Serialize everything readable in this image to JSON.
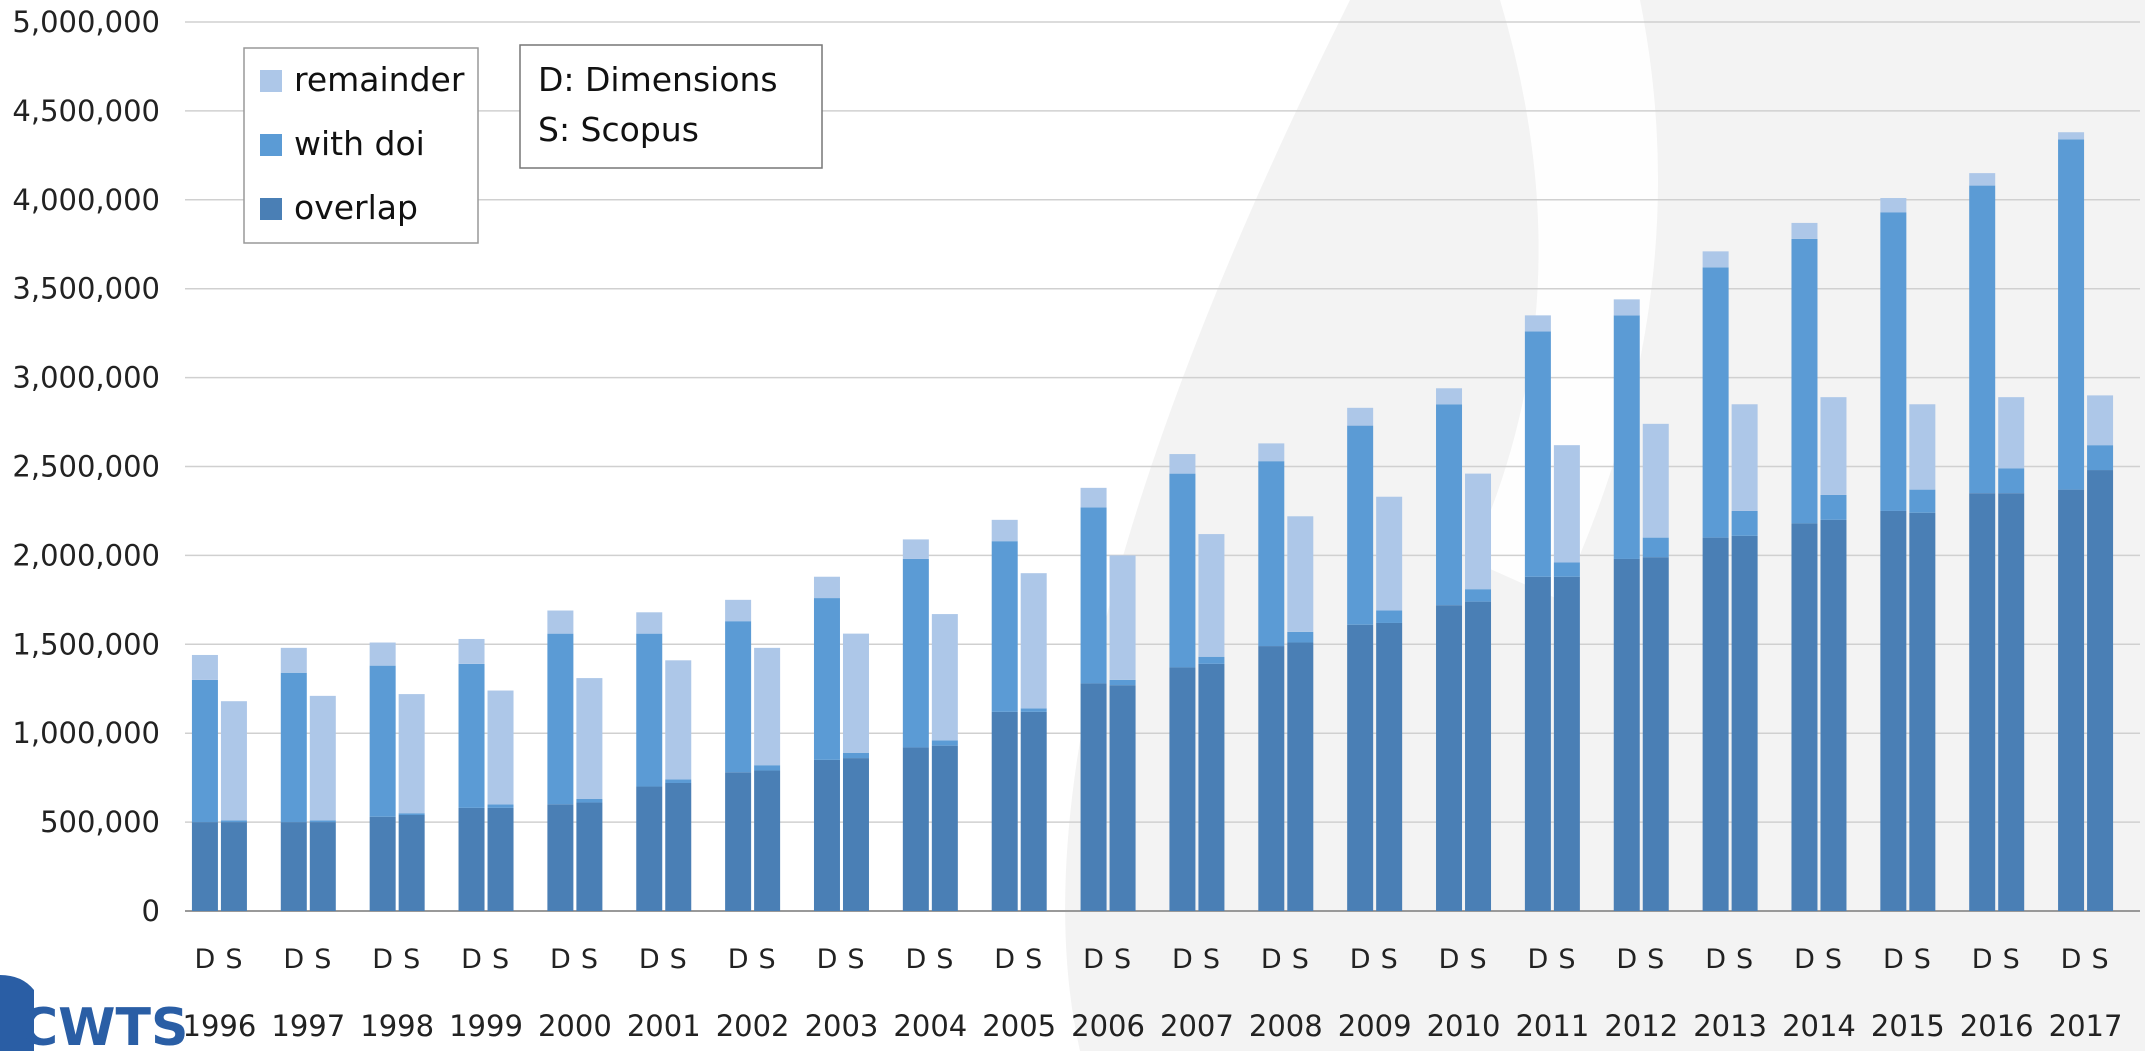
{
  "chart_data": {
    "type": "bar",
    "stacked": true,
    "grouped_by": [
      "D",
      "S"
    ],
    "categories": [
      "1996",
      "1997",
      "1998",
      "1999",
      "2000",
      "2001",
      "2002",
      "2003",
      "2004",
      "2005",
      "2006",
      "2007",
      "2008",
      "2009",
      "2010",
      "2011",
      "2012",
      "2013",
      "2014",
      "2015",
      "2016",
      "2017"
    ],
    "group_labels": [
      "D",
      "S"
    ],
    "ylim": [
      0,
      5000000
    ],
    "yticks": [
      0,
      500000,
      1000000,
      1500000,
      2000000,
      2500000,
      3000000,
      3500000,
      4000000,
      4500000,
      5000000
    ],
    "ytick_labels": [
      "0",
      "500,000",
      "1,000,000",
      "1,500,000",
      "2,000,000",
      "2,500,000",
      "3,000,000",
      "3,500,000",
      "4,000,000",
      "4,500,000",
      "5,000,000"
    ],
    "grid": true,
    "legend_position": "top-left",
    "series": [
      {
        "name": "overlap",
        "color": "#4a7fb5",
        "D": [
          500000,
          500000,
          530000,
          580000,
          600000,
          700000,
          780000,
          850000,
          920000,
          1120000,
          1280000,
          1370000,
          1490000,
          1610000,
          1720000,
          1880000,
          1980000,
          2100000,
          2180000,
          2250000,
          2350000,
          2370000
        ],
        "S": [
          500000,
          500000,
          540000,
          580000,
          610000,
          720000,
          790000,
          860000,
          930000,
          1120000,
          1270000,
          1390000,
          1510000,
          1620000,
          1740000,
          1880000,
          1990000,
          2110000,
          2200000,
          2240000,
          2350000,
          2480000
        ]
      },
      {
        "name": "with doi",
        "color": "#5b9bd5",
        "D": [
          800000,
          840000,
          850000,
          810000,
          960000,
          860000,
          850000,
          910000,
          1060000,
          960000,
          990000,
          1090000,
          1040000,
          1120000,
          1130000,
          1380000,
          1370000,
          1520000,
          1600000,
          1680000,
          1730000,
          1970000
        ],
        "S": [
          10000,
          10000,
          10000,
          20000,
          20000,
          20000,
          30000,
          30000,
          30000,
          20000,
          30000,
          40000,
          60000,
          70000,
          70000,
          80000,
          110000,
          140000,
          140000,
          130000,
          140000,
          140000
        ]
      },
      {
        "name": "remainder",
        "color": "#adc7e8",
        "D": [
          140000,
          140000,
          130000,
          140000,
          130000,
          120000,
          120000,
          120000,
          110000,
          120000,
          110000,
          110000,
          100000,
          100000,
          90000,
          90000,
          90000,
          90000,
          90000,
          80000,
          70000,
          40000
        ],
        "S": [
          670000,
          700000,
          670000,
          640000,
          680000,
          670000,
          660000,
          670000,
          710000,
          760000,
          700000,
          690000,
          650000,
          640000,
          650000,
          660000,
          640000,
          600000,
          550000,
          480000,
          400000,
          280000
        ]
      }
    ],
    "legend_order": [
      "remainder",
      "with doi",
      "overlap"
    ]
  },
  "annotation": {
    "line1": "D: Dimensions",
    "line2": "S: Scopus"
  },
  "logo": {
    "text": "CWTS",
    "color": "#2a5ea5"
  }
}
